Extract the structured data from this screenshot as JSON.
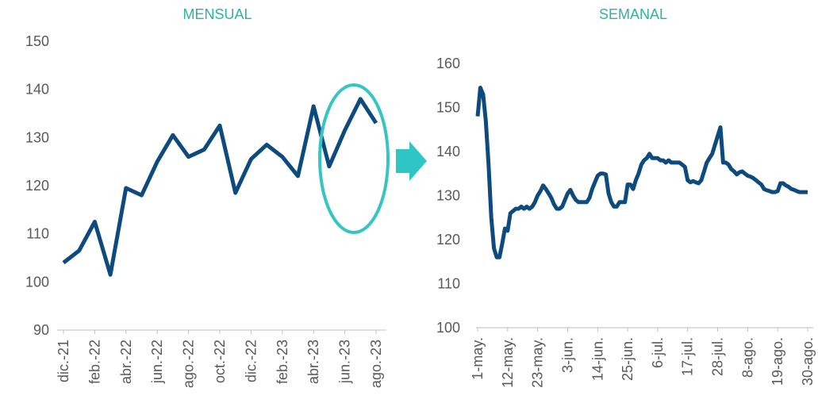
{
  "chart_data": [
    {
      "type": "line",
      "title": "MENSUAL",
      "categories": [
        "dic.-21",
        null,
        "feb.-22",
        null,
        "abr.-22",
        null,
        "jun.-22",
        null,
        "ago.-22",
        null,
        "oct.-22",
        null,
        "dic.-22",
        null,
        "feb.-23",
        null,
        "abr.-23",
        null,
        "jun.-23",
        null,
        "ago.-23"
      ],
      "values": [
        104,
        106.5,
        112.5,
        101.5,
        119.5,
        118,
        125,
        130.5,
        126,
        127.5,
        132.5,
        118.5,
        125.5,
        128.5,
        126,
        122,
        136.5,
        124,
        131.5,
        138,
        133
      ],
      "color": "#0d4a7e",
      "ylim": [
        90,
        150
      ],
      "yticks": [
        90,
        100,
        110,
        120,
        130,
        140,
        150
      ]
    },
    {
      "type": "line",
      "title": "SEMANAL",
      "categories": [
        "1-may.",
        null,
        null,
        null,
        null,
        null,
        null,
        null,
        null,
        null,
        null,
        "12-may.",
        null,
        null,
        null,
        null,
        null,
        null,
        null,
        null,
        null,
        null,
        "23-may.",
        null,
        null,
        null,
        null,
        null,
        null,
        null,
        null,
        null,
        null,
        "3-jun.",
        null,
        null,
        null,
        null,
        null,
        null,
        null,
        null,
        null,
        null,
        "14-jun.",
        null,
        null,
        null,
        null,
        null,
        null,
        null,
        null,
        null,
        null,
        "25-jun.",
        null,
        null,
        null,
        null,
        null,
        null,
        null,
        null,
        null,
        null,
        "6-jul.",
        null,
        null,
        null,
        null,
        null,
        null,
        null,
        null,
        null,
        null,
        "17-jul.",
        null,
        null,
        null,
        null,
        null,
        null,
        null,
        null,
        null,
        null,
        "28-jul.",
        null,
        null,
        null,
        null,
        null,
        null,
        null,
        null,
        null,
        null,
        "8-ago.",
        null,
        null,
        null,
        null,
        null,
        null,
        null,
        null,
        null,
        null,
        "19-ago.",
        null,
        null,
        null,
        null,
        null,
        null,
        null,
        null,
        null,
        null,
        "30-ago."
      ],
      "values": [
        148,
        154.5,
        153,
        147,
        137,
        125,
        118,
        116,
        116,
        119,
        122.5,
        122,
        126,
        126.5,
        127,
        127,
        127.5,
        127,
        127.5,
        127,
        127.5,
        128.5,
        130,
        131,
        132.3,
        131.5,
        130.5,
        129.5,
        128,
        127,
        127,
        127.5,
        129,
        130.5,
        131.3,
        130,
        129,
        128.5,
        128.5,
        128.5,
        128.5,
        129.5,
        131.5,
        133,
        134.5,
        135,
        135,
        134.8,
        130.5,
        128.5,
        127.5,
        127.5,
        128.5,
        128.5,
        128.5,
        132.5,
        132.5,
        131.5,
        133.5,
        135,
        137,
        138,
        138.5,
        139.5,
        138.5,
        138.5,
        138.5,
        138,
        138,
        137.5,
        138,
        137.5,
        137.5,
        137.5,
        137.5,
        137,
        136.5,
        133.5,
        133,
        133.3,
        133,
        132.8,
        133.5,
        135.5,
        137.5,
        138.5,
        139.5,
        141.5,
        143.5,
        145.5,
        137.5,
        137.5,
        137,
        136,
        135.5,
        134.8,
        135.3,
        135.5,
        135,
        134.5,
        134.3,
        134,
        133.5,
        133,
        132.5,
        131.5,
        131.2,
        131,
        130.8,
        130.8,
        131,
        132.8,
        132.8,
        132.3,
        132,
        131.5,
        131.3,
        131,
        130.8,
        130.8,
        130.8,
        130.8
      ],
      "color": "#0d4a7e",
      "ylim": [
        100,
        160
      ],
      "yticks": [
        100,
        110,
        120,
        130,
        140,
        150,
        160
      ]
    }
  ]
}
